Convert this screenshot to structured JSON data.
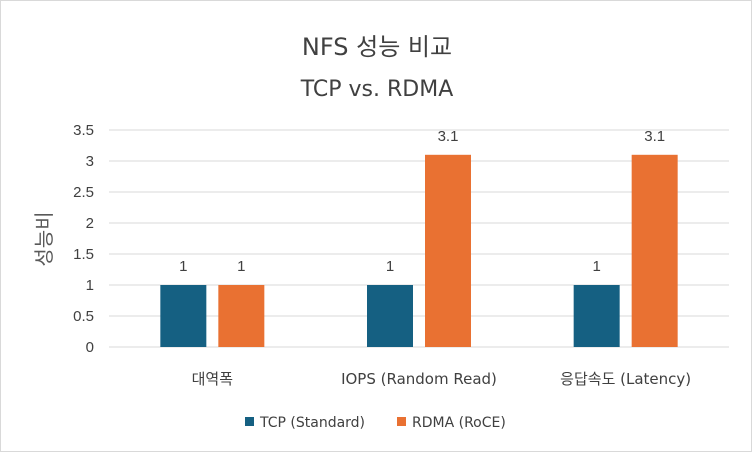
{
  "chart_data": {
    "type": "bar",
    "title": "NFS 성능 비교",
    "subtitle": "TCP vs. RDMA",
    "ylabel": "성능비",
    "xlabel": "",
    "categories": [
      "대역폭",
      "IOPS (Random Read)",
      "응답속도 (Latency)"
    ],
    "series": [
      {
        "name": "TCP (Standard)",
        "values": [
          1,
          1,
          1
        ],
        "color": "#156082"
      },
      {
        "name": "RDMA (RoCE)",
        "values": [
          1,
          3.1,
          3.1
        ],
        "color": "#E97132"
      }
    ],
    "ylim": [
      0,
      3.5
    ],
    "yticks": [
      "0",
      "0.5",
      "1",
      "1.5",
      "2",
      "2.5",
      "3",
      "3.5"
    ],
    "grid": true,
    "legend": "bottom",
    "data_labels": true
  }
}
